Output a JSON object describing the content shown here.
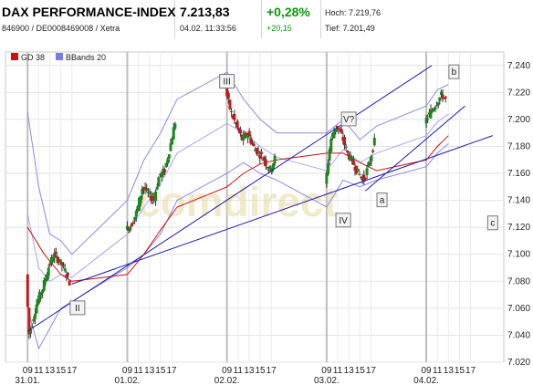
{
  "header": {
    "title": "DAX PERFORMANCE-INDEX",
    "ids": "846900 / DE0008469008 / Xetra",
    "price": "7.213,83",
    "datetime": "04.02. 11:33:56",
    "change_pct": "+0,28%",
    "change_abs": "+20,15",
    "high_label": "Hoch: 7.219,76",
    "low_label": "Tief: 7.201,49"
  },
  "watermark": "comdirect",
  "chart_data": {
    "type": "candlestick",
    "legend": [
      {
        "name": "GD 38",
        "color": "#d01010"
      },
      {
        "name": "BBands 20",
        "color": "#7b7be0"
      }
    ],
    "ylim": [
      7020,
      7250
    ],
    "y_ticks": [
      "7.240",
      "7.220",
      "7.200",
      "7.180",
      "7.160",
      "7.140",
      "7.120",
      "7.100",
      "7.080",
      "7.060",
      "7.040",
      "7.020"
    ],
    "y_tick_values": [
      7240,
      7220,
      7200,
      7180,
      7160,
      7140,
      7120,
      7100,
      7080,
      7060,
      7040,
      7020
    ],
    "x_ticks": [
      "09",
      "11",
      "13",
      "15",
      "17",
      "09",
      "11",
      "13",
      "15",
      "17",
      "09",
      "11",
      "13",
      "15",
      "17",
      "09",
      "11",
      "13",
      "15",
      "17",
      "09",
      "11",
      "13",
      "15",
      "17"
    ],
    "x_tick_hours": [
      9,
      11,
      13,
      15,
      17,
      27,
      29,
      31,
      33,
      35,
      45,
      47,
      49,
      51,
      53,
      63,
      65,
      67,
      69,
      71,
      81,
      83,
      85,
      87,
      89
    ],
    "date_labels": [
      {
        "text": "31.01.",
        "hour": 9
      },
      {
        "text": "01.02.",
        "hour": 27
      },
      {
        "text": "02.02.",
        "hour": 45
      },
      {
        "text": "03.02.",
        "hour": 63
      },
      {
        "text": "04.02.",
        "hour": 81
      }
    ],
    "day_separators": [
      9,
      27,
      45,
      63,
      81
    ],
    "price_path": [
      [
        9,
        7085
      ],
      [
        9.5,
        7040
      ],
      [
        10,
        7048
      ],
      [
        11,
        7065
      ],
      [
        12,
        7075
      ],
      [
        13,
        7090
      ],
      [
        14,
        7100
      ],
      [
        15,
        7095
      ],
      [
        16,
        7088
      ],
      [
        17,
        7078
      ],
      [
        27,
        7118
      ],
      [
        28,
        7122
      ],
      [
        29,
        7132
      ],
      [
        30,
        7150
      ],
      [
        31,
        7145
      ],
      [
        32,
        7140
      ],
      [
        33,
        7158
      ],
      [
        34,
        7162
      ],
      [
        35,
        7180
      ],
      [
        36,
        7200
      ],
      [
        45,
        7222
      ],
      [
        46,
        7205
      ],
      [
        47,
        7195
      ],
      [
        48,
        7185
      ],
      [
        49,
        7190
      ],
      [
        50,
        7180
      ],
      [
        51,
        7175
      ],
      [
        52,
        7170
      ],
      [
        53,
        7162
      ],
      [
        54,
        7172
      ],
      [
        63,
        7150
      ],
      [
        64,
        7185
      ],
      [
        65,
        7195
      ],
      [
        66,
        7188
      ],
      [
        67,
        7175
      ],
      [
        68,
        7168
      ],
      [
        69,
        7160
      ],
      [
        70,
        7155
      ],
      [
        71,
        7168
      ],
      [
        72,
        7185
      ],
      [
        81,
        7198
      ],
      [
        82,
        7205
      ],
      [
        83,
        7212
      ],
      [
        84,
        7218
      ],
      [
        85,
        7214
      ]
    ],
    "gd38": [
      [
        9,
        7120
      ],
      [
        12,
        7100
      ],
      [
        15,
        7085
      ],
      [
        17,
        7080
      ],
      [
        27,
        7085
      ],
      [
        30,
        7100
      ],
      [
        33,
        7118
      ],
      [
        36,
        7135
      ],
      [
        45,
        7150
      ],
      [
        48,
        7160
      ],
      [
        51,
        7167
      ],
      [
        54,
        7170
      ],
      [
        63,
        7175
      ],
      [
        66,
        7175
      ],
      [
        69,
        7168
      ],
      [
        72,
        7162
      ],
      [
        81,
        7170
      ],
      [
        83,
        7180
      ],
      [
        85,
        7188
      ]
    ],
    "bb_upper": [
      [
        9,
        7205
      ],
      [
        11,
        7150
      ],
      [
        13,
        7115
      ],
      [
        15,
        7110
      ],
      [
        17,
        7100
      ],
      [
        27,
        7140
      ],
      [
        30,
        7170
      ],
      [
        33,
        7190
      ],
      [
        36,
        7215
      ],
      [
        45,
        7235
      ],
      [
        48,
        7215
      ],
      [
        51,
        7200
      ],
      [
        54,
        7190
      ],
      [
        63,
        7190
      ],
      [
        66,
        7200
      ],
      [
        69,
        7185
      ],
      [
        72,
        7195
      ],
      [
        81,
        7210
      ],
      [
        83,
        7222
      ],
      [
        85,
        7226
      ]
    ],
    "bb_lower": [
      [
        9,
        7060
      ],
      [
        11,
        7030
      ],
      [
        13,
        7045
      ],
      [
        15,
        7060
      ],
      [
        17,
        7065
      ],
      [
        27,
        7090
      ],
      [
        30,
        7100
      ],
      [
        33,
        7115
      ],
      [
        36,
        7140
      ],
      [
        45,
        7160
      ],
      [
        48,
        7168
      ],
      [
        51,
        7160
      ],
      [
        54,
        7155
      ],
      [
        63,
        7135
      ],
      [
        66,
        7155
      ],
      [
        69,
        7150
      ],
      [
        72,
        7155
      ],
      [
        81,
        7165
      ],
      [
        83,
        7175
      ],
      [
        85,
        7182
      ]
    ],
    "bb_mid": [
      [
        9,
        7130
      ],
      [
        11,
        7090
      ],
      [
        13,
        7080
      ],
      [
        15,
        7085
      ],
      [
        17,
        7083
      ],
      [
        27,
        7115
      ],
      [
        30,
        7135
      ],
      [
        33,
        7152
      ],
      [
        36,
        7175
      ],
      [
        45,
        7197
      ],
      [
        48,
        7190
      ],
      [
        51,
        7180
      ],
      [
        54,
        7172
      ],
      [
        63,
        7162
      ],
      [
        66,
        7178
      ],
      [
        69,
        7168
      ],
      [
        72,
        7175
      ],
      [
        81,
        7188
      ],
      [
        83,
        7198
      ],
      [
        85,
        7204
      ]
    ],
    "trendlines": [
      {
        "from": [
          9,
          7043
        ],
        "to": [
          82,
          7240
        ]
      },
      {
        "from": [
          17,
          7078
        ],
        "to": [
          93,
          7188
        ]
      },
      {
        "from": [
          70,
          7147
        ],
        "to": [
          88,
          7210
        ]
      }
    ],
    "annotations": [
      {
        "text": "III",
        "hour": 45,
        "value": 7228
      },
      {
        "text": "II",
        "hour": 18,
        "value": 7060
      },
      {
        "text": "V?",
        "hour": 67,
        "value": 7200
      },
      {
        "text": "IV",
        "hour": 66,
        "value": 7125
      },
      {
        "text": "a",
        "hour": 73,
        "value": 7140
      },
      {
        "text": "b",
        "hour": 86,
        "value": 7235
      },
      {
        "text": "c",
        "hour": 93,
        "value": 7123
      }
    ]
  }
}
